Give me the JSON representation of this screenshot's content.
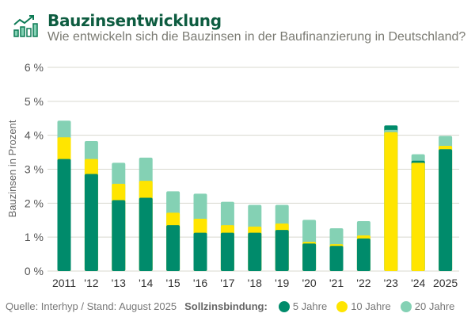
{
  "header": {
    "title": "Bauzinsentwicklung",
    "subtitle": "Wie entwickeln sich die Bauzinsen in der Baufinanzierung in Deutschland?",
    "icon": "chart-trend-icon"
  },
  "footer": {
    "source": "Quelle: Interhyp  /  Stand: August 2025",
    "legend_title": "Sollzinsbindung:"
  },
  "chart_data": {
    "type": "bar",
    "ylabel": "Bauzinsen in Prozent",
    "ylim": [
      0,
      6
    ],
    "yticks": [
      "0 %",
      "1 %",
      "2 %",
      "3 %",
      "4 %",
      "5 %",
      "6 %"
    ],
    "grid": true,
    "legend_position": "bottom",
    "categories": [
      "2011",
      "'12",
      "'13",
      "'14",
      "'15",
      "'16",
      "'17",
      "'18",
      "'19",
      "'20",
      "'21",
      "'22",
      "'23",
      "'24",
      "2025"
    ],
    "series": [
      {
        "name": "5 Jahre",
        "color": "#008b6b",
        "values": [
          3.3,
          2.86,
          2.09,
          2.16,
          1.35,
          1.13,
          1.13,
          1.13,
          1.21,
          0.81,
          0.74,
          0.96,
          4.29,
          3.25,
          3.59
        ]
      },
      {
        "name": "10 Jahre",
        "color": "#ffe500",
        "values": [
          3.94,
          3.3,
          2.57,
          2.66,
          1.72,
          1.54,
          1.35,
          1.31,
          1.4,
          0.86,
          0.79,
          1.05,
          4.09,
          3.19,
          3.69
        ]
      },
      {
        "name": "20 Jahre",
        "color": "#84d1b4",
        "values": [
          4.43,
          3.83,
          3.19,
          3.34,
          2.35,
          2.28,
          2.04,
          1.95,
          1.95,
          1.51,
          1.26,
          1.47,
          4.16,
          3.44,
          3.98
        ]
      }
    ]
  }
}
